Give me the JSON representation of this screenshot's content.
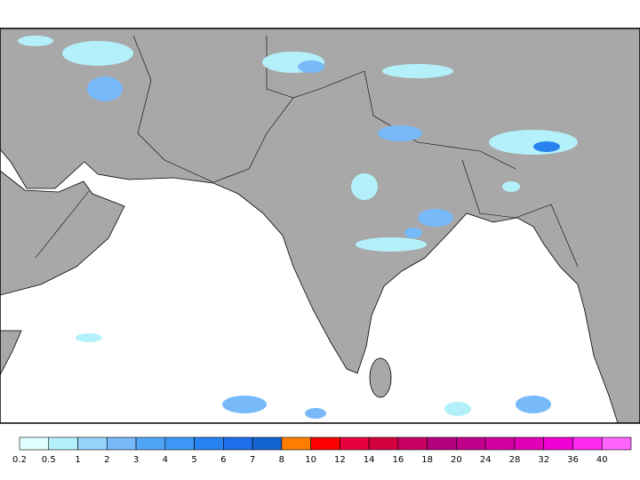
{
  "legend": {
    "levels": [
      0.2,
      0.5,
      1,
      2,
      3,
      4,
      5,
      6,
      7,
      8,
      10,
      12,
      14,
      16,
      18,
      20,
      24,
      28,
      32,
      36,
      40
    ],
    "colors": [
      "#e1ffff",
      "#b4f0fa",
      "#96d2fa",
      "#78b9fa",
      "#50a5f5",
      "#3c97f5",
      "#2882f0",
      "#1e6eeb",
      "#1464d2",
      "#ff7d00",
      "#fa0000",
      "#e6003c",
      "#d2003c",
      "#c80064",
      "#b4007d",
      "#c0008c",
      "#d200a0",
      "#e100b4",
      "#f000d2",
      "#ff28f0",
      "#ff64ff"
    ]
  }
}
